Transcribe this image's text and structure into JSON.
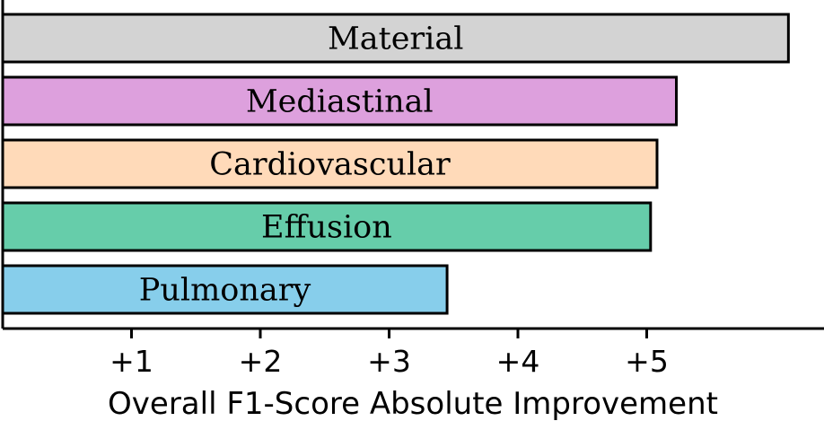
{
  "chart_data": {
    "type": "bar",
    "orientation": "horizontal",
    "title": "",
    "xlabel": "Overall F1-Score Absolute Improvement",
    "ylabel": "",
    "categories": [
      "Material",
      "Mediastinal",
      "Cardiovascular",
      "Effusion",
      "Pulmonary"
    ],
    "values": [
      6.1,
      5.23,
      5.08,
      5.03,
      3.45
    ],
    "colors": [
      "#d3d3d3",
      "#dda0dd",
      "#ffdab9",
      "#66cdaa",
      "#87ceeb"
    ],
    "xticks": [
      1,
      2,
      3,
      4,
      5
    ],
    "xtick_labels": [
      "+1",
      "+2",
      "+3",
      "+4",
      "+5"
    ],
    "xlim": [
      0,
      6.4
    ],
    "grid": false,
    "legend": "none"
  }
}
